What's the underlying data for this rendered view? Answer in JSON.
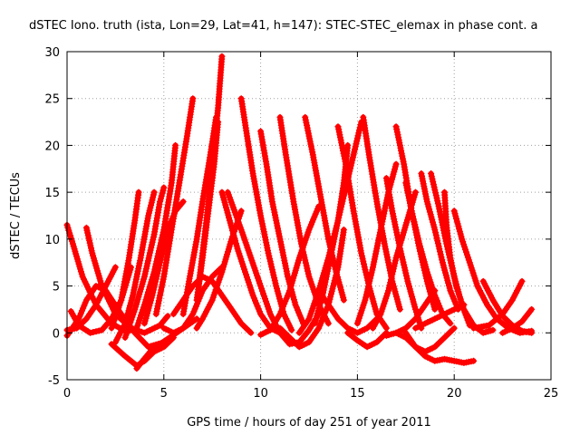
{
  "chart_data": {
    "type": "line",
    "title": "dSTEC Iono. truth (ista, Lon=29, Lat=41, h=147): STEC-STEC_elemax in phase cont. a",
    "xlabel": "GPS time / hours of day 251 of year 2011",
    "ylabel": "dSTEC  / TECUs",
    "xlim": [
      0,
      25
    ],
    "ylim": [
      -5,
      30
    ],
    "xticks": [
      "0",
      "5",
      "10",
      "15",
      "20",
      "25"
    ],
    "yticks": [
      "-5",
      "0",
      "5",
      "10",
      "15",
      "20",
      "25",
      "30"
    ],
    "grid": true,
    "marker": "plus",
    "color": "#ff0000",
    "series": [
      {
        "x": [
          0.0,
          0.3,
          0.8,
          1.5,
          2.3,
          3.0,
          3.5
        ],
        "y": [
          11.5,
          9.5,
          6.0,
          3.0,
          1.0,
          0.2,
          0.3
        ]
      },
      {
        "x": [
          1.0,
          1.3,
          1.8,
          2.5,
          3.3,
          4.0,
          4.8,
          5.2
        ],
        "y": [
          11.2,
          8.5,
          5.0,
          2.0,
          0.5,
          0.0,
          0.8,
          1.8
        ]
      },
      {
        "x": [
          0.0,
          0.5,
          1.0,
          1.5,
          2.0,
          2.5
        ],
        "y": [
          0.3,
          0.5,
          1.5,
          3.0,
          5.0,
          7.0
        ]
      },
      {
        "x": [
          0.2,
          0.6,
          1.2,
          1.8,
          2.3,
          2.8,
          3.3
        ],
        "y": [
          2.3,
          0.8,
          0.0,
          0.3,
          1.5,
          3.5,
          7.0
        ]
      },
      {
        "x": [
          0.0,
          0.6,
          1.0,
          1.5,
          2.0,
          2.8,
          3.5,
          4.2,
          5.0
        ],
        "y": [
          -0.3,
          1.5,
          3.5,
          5.0,
          4.5,
          2.0,
          0.0,
          -1.5,
          -1.0
        ]
      },
      {
        "x": [
          2.3,
          2.8,
          3.2,
          3.5,
          3.7
        ],
        "y": [
          0.5,
          3.5,
          8.0,
          12.0,
          15.0
        ]
      },
      {
        "x": [
          2.5,
          3.0,
          3.4,
          3.8,
          4.2,
          4.5
        ],
        "y": [
          -1.0,
          1.0,
          4.0,
          8.0,
          12.5,
          15.0
        ]
      },
      {
        "x": [
          3.0,
          3.5,
          4.0,
          4.5,
          4.8,
          5.0
        ],
        "y": [
          -0.5,
          2.5,
          6.0,
          10.5,
          14.0,
          15.5
        ]
      },
      {
        "x": [
          3.6,
          4.0,
          4.5,
          5.0,
          5.4,
          5.6
        ],
        "y": [
          0.5,
          3.0,
          6.5,
          11.0,
          16.0,
          20.0
        ]
      },
      {
        "x": [
          2.3,
          3.0,
          3.6,
          4.0,
          4.5,
          5.0,
          5.5
        ],
        "y": [
          -1.2,
          -2.5,
          -3.5,
          -3.0,
          -2.0,
          -1.5,
          -0.5
        ]
      },
      {
        "x": [
          3.6,
          3.9,
          4.3,
          4.8,
          5.3,
          6.0,
          6.7
        ],
        "y": [
          -3.8,
          -3.0,
          -2.0,
          -1.2,
          -0.5,
          0.5,
          1.5
        ]
      },
      {
        "x": [
          4.0,
          4.4,
          4.8,
          5.2,
          5.6,
          6.0
        ],
        "y": [
          1.0,
          4.0,
          7.5,
          11.0,
          13.0,
          14.0
        ]
      },
      {
        "x": [
          4.6,
          5.0,
          5.4,
          5.8,
          6.2,
          6.5
        ],
        "y": [
          2.0,
          6.0,
          11.0,
          16.0,
          21.0,
          25.0
        ]
      },
      {
        "x": [
          5.0,
          5.5,
          6.0,
          6.5,
          7.0,
          7.5,
          8.0
        ],
        "y": [
          0.5,
          0.0,
          0.5,
          2.0,
          4.5,
          6.0,
          7.0
        ]
      },
      {
        "x": [
          6.0,
          6.3,
          6.7,
          7.0,
          7.4,
          7.7
        ],
        "y": [
          2.0,
          5.5,
          10.0,
          14.0,
          19.0,
          23.0
        ]
      },
      {
        "x": [
          6.8,
          7.2,
          7.5,
          7.8,
          8.0
        ],
        "y": [
          5.0,
          12.0,
          18.0,
          24.0,
          29.5
        ]
      },
      {
        "x": [
          6.7,
          7.0,
          7.3,
          7.6,
          7.8
        ],
        "y": [
          3.5,
          8.0,
          13.0,
          18.0,
          22.5
        ]
      },
      {
        "x": [
          5.5,
          6.0,
          6.5,
          7.0,
          7.5,
          8.0,
          8.5,
          9.0,
          9.5
        ],
        "y": [
          2.0,
          3.5,
          5.0,
          6.0,
          5.5,
          4.0,
          2.5,
          1.0,
          0.0
        ]
      },
      {
        "x": [
          8.0,
          8.4,
          8.8,
          9.2,
          9.6,
          10.0,
          10.5,
          11.0
        ],
        "y": [
          15.0,
          12.0,
          9.0,
          6.5,
          4.0,
          2.0,
          0.5,
          0.0
        ]
      },
      {
        "x": [
          9.0,
          9.3,
          9.6,
          10.0,
          10.4,
          10.8,
          11.2,
          11.6
        ],
        "y": [
          25.0,
          21.0,
          17.0,
          12.5,
          8.5,
          5.0,
          2.0,
          0.3
        ]
      },
      {
        "x": [
          10.0,
          10.3,
          10.6,
          11.0,
          11.4,
          11.8,
          12.2
        ],
        "y": [
          21.5,
          18.0,
          14.0,
          10.0,
          6.0,
          3.0,
          1.0
        ]
      },
      {
        "x": [
          11.0,
          11.3,
          11.7,
          12.1,
          12.5,
          13.0,
          13.5
        ],
        "y": [
          23.0,
          19.0,
          14.0,
          9.5,
          6.0,
          3.0,
          1.0
        ]
      },
      {
        "x": [
          12.3,
          12.7,
          13.1,
          13.5,
          13.9,
          14.3
        ],
        "y": [
          23.0,
          19.0,
          14.5,
          10.0,
          6.5,
          3.5
        ]
      },
      {
        "x": [
          14.0,
          14.4,
          14.8,
          15.2,
          15.6,
          16.0,
          16.5
        ],
        "y": [
          22.0,
          18.0,
          13.0,
          8.5,
          5.0,
          2.0,
          0.5
        ]
      },
      {
        "x": [
          15.3,
          15.6,
          16.0,
          16.4,
          16.8,
          17.2
        ],
        "y": [
          23.0,
          19.0,
          14.0,
          9.5,
          5.5,
          2.5
        ]
      },
      {
        "x": [
          17.0,
          17.4,
          17.8,
          18.2,
          18.6,
          19.0
        ],
        "y": [
          22.0,
          18.0,
          13.0,
          9.0,
          5.5,
          2.5
        ]
      },
      {
        "x": [
          9.0,
          8.5,
          8.0,
          7.5,
          7.0,
          6.7
        ],
        "y": [
          13.0,
          10.0,
          6.5,
          3.5,
          1.5,
          0.5
        ]
      },
      {
        "x": [
          8.3,
          9.0,
          9.5,
          10.0,
          10.5,
          11.0,
          11.5,
          12.0,
          12.5,
          13.0
        ],
        "y": [
          15.0,
          11.0,
          8.0,
          5.0,
          2.0,
          0.0,
          -1.2,
          -1.0,
          0.3,
          2.0
        ]
      },
      {
        "x": [
          10.0,
          10.5,
          11.0,
          11.5,
          12.0,
          12.5,
          13.0
        ],
        "y": [
          -0.2,
          0.3,
          2.0,
          4.5,
          8.0,
          11.0,
          13.5
        ]
      },
      {
        "x": [
          11.0,
          11.5,
          12.0,
          12.5,
          13.0,
          13.5,
          14.0,
          14.3
        ],
        "y": [
          0.5,
          -0.5,
          -1.5,
          -1.0,
          0.5,
          3.0,
          7.0,
          11.0
        ]
      },
      {
        "x": [
          12.0,
          12.5,
          13.0,
          13.5,
          14.0,
          14.3,
          14.5
        ],
        "y": [
          0.0,
          1.5,
          4.5,
          8.0,
          12.0,
          16.0,
          20.0
        ]
      },
      {
        "x": [
          12.8,
          13.2,
          13.6,
          14.0,
          14.4,
          14.8,
          15.2
        ],
        "y": [
          1.0,
          4.0,
          8.0,
          12.0,
          15.5,
          19.0,
          22.5
        ]
      },
      {
        "x": [
          13.0,
          13.5,
          14.0,
          14.5,
          15.0,
          15.5,
          16.0
        ],
        "y": [
          4.5,
          3.0,
          1.5,
          0.5,
          0.0,
          0.5,
          1.5
        ]
      },
      {
        "x": [
          14.5,
          15.0,
          15.5,
          16.0,
          16.5
        ],
        "y": [
          0.0,
          -0.8,
          -1.5,
          -1.0,
          0.0
        ]
      },
      {
        "x": [
          15.0,
          15.4,
          15.8,
          16.2,
          16.6,
          17.0
        ],
        "y": [
          1.0,
          3.5,
          7.0,
          11.0,
          15.0,
          18.0
        ]
      },
      {
        "x": [
          15.8,
          16.2,
          16.6,
          17.0,
          17.5,
          18.0
        ],
        "y": [
          0.5,
          2.0,
          4.5,
          8.0,
          11.5,
          15.0
        ]
      },
      {
        "x": [
          16.5,
          16.8,
          17.2,
          17.6,
          18.0,
          18.3
        ],
        "y": [
          16.5,
          13.0,
          9.0,
          5.5,
          2.5,
          0.5
        ]
      },
      {
        "x": [
          17.5,
          17.8,
          18.2,
          18.6,
          19.0,
          19.4,
          19.8
        ],
        "y": [
          16.0,
          13.0,
          9.5,
          6.5,
          4.0,
          2.0,
          1.0
        ]
      },
      {
        "x": [
          18.3,
          18.6,
          19.0,
          19.4,
          19.8,
          20.2
        ],
        "y": [
          17.0,
          14.0,
          11.0,
          7.5,
          4.5,
          2.5
        ]
      },
      {
        "x": [
          18.8,
          19.2,
          19.6,
          20.0,
          20.4,
          20.8
        ],
        "y": [
          17.0,
          13.5,
          9.5,
          6.0,
          3.0,
          0.8
        ]
      },
      {
        "x": [
          19.5,
          19.6,
          19.8,
          20.1,
          20.5,
          21.0,
          21.5,
          22.0
        ],
        "y": [
          15.0,
          11.5,
          8.0,
          5.0,
          2.5,
          0.8,
          0.0,
          0.3
        ]
      },
      {
        "x": [
          20.0,
          20.4,
          20.8,
          21.2,
          21.7,
          22.2,
          22.8,
          23.4,
          24.0
        ],
        "y": [
          13.0,
          10.0,
          7.5,
          5.0,
          3.0,
          1.5,
          0.5,
          0.0,
          0.2
        ]
      },
      {
        "x": [
          21.5,
          22.0,
          22.5,
          23.0,
          23.5,
          24.0
        ],
        "y": [
          5.5,
          3.5,
          1.8,
          0.8,
          0.2,
          0.0
        ]
      },
      {
        "x": [
          21.0,
          21.8,
          22.5,
          23.0,
          23.5
        ],
        "y": [
          0.5,
          0.8,
          2.0,
          3.5,
          5.5
        ]
      },
      {
        "x": [
          22.5,
          23.0,
          23.5,
          24.0
        ],
        "y": [
          0.0,
          0.5,
          1.2,
          2.5
        ]
      },
      {
        "x": [
          17.5,
          18.0,
          18.5,
          19.0,
          19.5,
          20.0,
          20.5,
          21.0
        ],
        "y": [
          0.0,
          -1.5,
          -2.5,
          -3.0,
          -2.8,
          -3.0,
          -3.2,
          -3.0
        ]
      },
      {
        "x": [
          16.5,
          17.0,
          17.5,
          18.0,
          18.5,
          19.0,
          19.5,
          20.0
        ],
        "y": [
          -0.3,
          0.0,
          -0.5,
          -1.5,
          -2.0,
          -1.5,
          -0.5,
          0.5
        ]
      },
      {
        "x": [
          18.0,
          18.5,
          19.0,
          19.5,
          20.0,
          20.5
        ],
        "y": [
          0.5,
          1.0,
          1.5,
          2.0,
          2.5,
          3.0
        ]
      },
      {
        "x": [
          17.0,
          17.5,
          18.0,
          18.5,
          19.0
        ],
        "y": [
          0.0,
          0.5,
          1.5,
          3.0,
          4.5
        ]
      }
    ]
  }
}
